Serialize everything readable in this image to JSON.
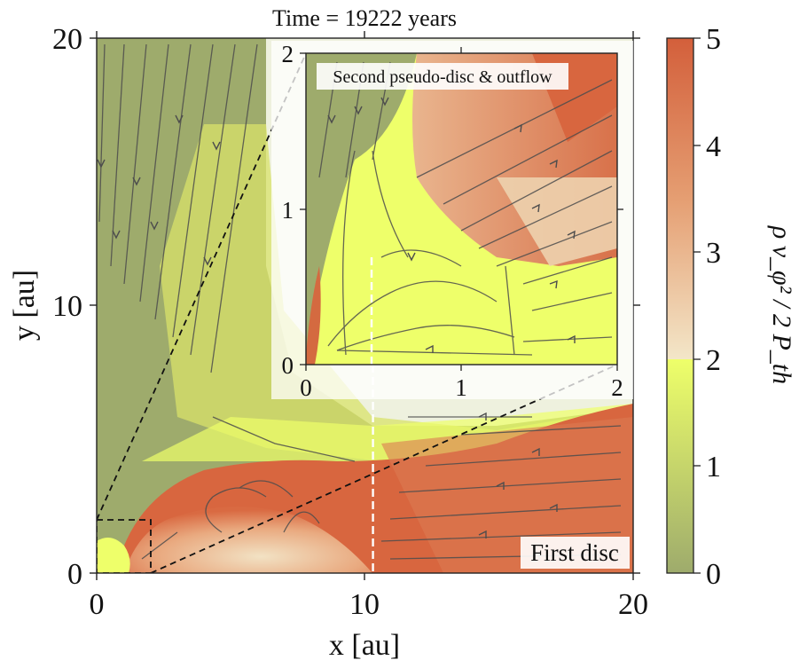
{
  "chart_data": {
    "type": "heatmap",
    "title": "Time = 19222 years",
    "xlabel": "x [au]",
    "ylabel": "y [au]",
    "xlim": [
      0,
      20
    ],
    "ylim": [
      0,
      20
    ],
    "x_ticks": [
      "0",
      "10",
      "20"
    ],
    "y_ticks": [
      "0",
      "10",
      "20"
    ],
    "annotation_main": "First disc",
    "vertical_dashed_line_x": 10.3,
    "zoom_box": [
      [
        0,
        0
      ],
      [
        2,
        2
      ]
    ],
    "inset": {
      "annotation": "Second pseudo-disc & outflow",
      "xlim": [
        0,
        2
      ],
      "ylim": [
        0,
        2
      ],
      "x_ticks": [
        "0",
        "1",
        "2"
      ],
      "y_ticks": [
        "0",
        "1",
        "2"
      ]
    },
    "colorbar": {
      "label": "ρ v_φ² / 2 P_th",
      "range": [
        0,
        5
      ],
      "ticks": [
        "0",
        "1",
        "2",
        "3",
        "4",
        "5"
      ],
      "colors": {
        "low": "#9eab6c",
        "mid": "#eeff6a",
        "break": "#f3e6c8",
        "high": "#d35f3b"
      }
    }
  }
}
